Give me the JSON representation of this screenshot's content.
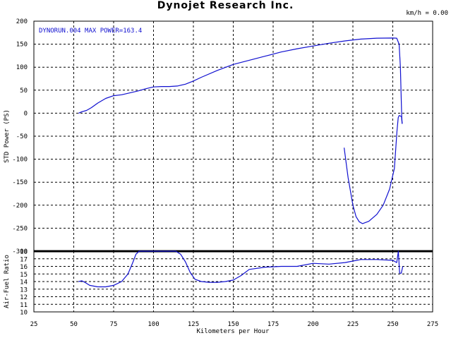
{
  "header": {
    "title": "Dynojet  Research  Inc.",
    "speed_readout": "km/h = 0.00"
  },
  "chart_data": [
    {
      "type": "line",
      "name": "power",
      "annotation": "DYNORUN.004  MAX POWER=163.4",
      "ylabel": "STD Power (PS)",
      "xlim": [
        25,
        275
      ],
      "ylim": [
        -300,
        200
      ],
      "yticks": [
        200,
        150,
        100,
        50,
        0,
        -50,
        -100,
        -150,
        -200,
        -250,
        -300
      ],
      "grid": true,
      "color": "#1010d0",
      "series": [
        {
          "x": [
            53,
            55,
            58,
            61,
            65,
            70,
            75,
            80,
            85,
            90,
            95,
            100,
            105,
            110,
            115,
            120,
            125,
            130,
            140,
            150,
            160,
            170,
            180,
            190,
            200,
            210,
            220,
            230,
            240,
            250,
            252.5,
            254,
            254.8,
            255.3,
            255.6,
            255.9
          ],
          "y": [
            0,
            3,
            6,
            12,
            22,
            32,
            38,
            40,
            44,
            48,
            53,
            57,
            58,
            58,
            59,
            63,
            70,
            78,
            93,
            106,
            115,
            124,
            133,
            140,
            146,
            152,
            157,
            161,
            163,
            163.4,
            163,
            150,
            100,
            30,
            -8,
            -23
          ]
        },
        {
          "x": [
            255.9,
            255.5,
            254.8,
            254,
            253.4,
            252.6,
            251,
            248,
            244,
            240,
            235,
            231,
            229,
            227,
            225,
            222,
            219.5
          ],
          "y": [
            -23,
            -8,
            -6,
            -5,
            -10,
            -40,
            -120,
            -165,
            -200,
            -220,
            -235,
            -240,
            -236,
            -225,
            -200,
            -140,
            -75
          ]
        }
      ]
    },
    {
      "type": "line",
      "name": "afr",
      "ylabel": "Air-Fuel Ratio",
      "xlabel": "Kilometers per Hour",
      "xlim": [
        25,
        275
      ],
      "ylim": [
        10,
        18
      ],
      "yticks": [
        18,
        17,
        16,
        15,
        14,
        13,
        12,
        11,
        10
      ],
      "xticks": [
        25,
        50,
        75,
        100,
        125,
        150,
        175,
        200,
        225,
        250,
        275
      ],
      "grid": true,
      "color": "#1010d0",
      "series": [
        {
          "x": [
            53,
            55,
            57,
            60,
            65,
            70,
            75,
            80,
            84,
            87,
            89,
            91,
            93,
            100,
            110,
            114,
            117,
            120,
            123,
            126,
            130,
            135,
            140,
            145,
            150,
            155,
            160,
            170,
            180,
            190,
            200,
            210,
            220,
            230,
            240,
            250,
            252.5,
            253.5,
            254.3,
            255.3,
            256.3
          ],
          "y": [
            14.0,
            14.1,
            13.9,
            13.5,
            13.3,
            13.3,
            13.5,
            14.0,
            15.0,
            16.5,
            17.6,
            18,
            18,
            18,
            18,
            18,
            17.6,
            16.6,
            15.2,
            14.3,
            14.0,
            13.9,
            13.9,
            14.0,
            14.2,
            14.8,
            15.6,
            15.9,
            16.0,
            16.0,
            16.4,
            16.3,
            16.5,
            16.9,
            16.9,
            16.8,
            16.5,
            18,
            15.1,
            15.1,
            16.0
          ]
        }
      ]
    }
  ]
}
